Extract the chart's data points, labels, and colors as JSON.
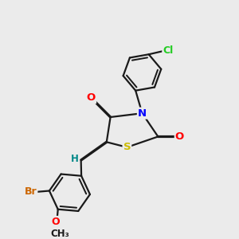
{
  "bg_color": "#ebebeb",
  "bond_color": "#1a1a1a",
  "bond_width": 1.6,
  "dbo": 0.018,
  "atom_colors": {
    "O": "#ff0000",
    "N": "#0000ff",
    "S": "#ccbb00",
    "Br": "#cc6600",
    "Cl": "#22cc22",
    "H": "#008888",
    "C": "#1a1a1a"
  }
}
